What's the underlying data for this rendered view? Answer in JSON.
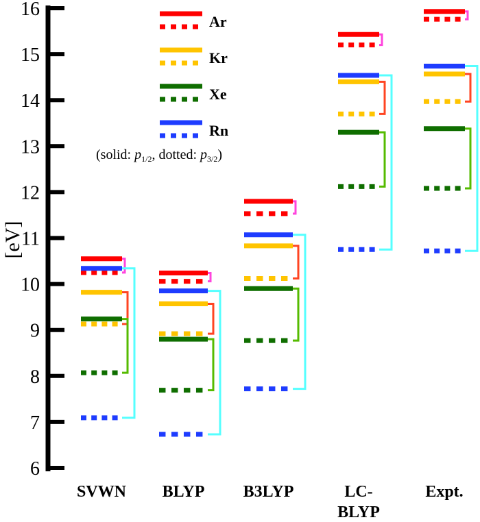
{
  "chart_data": {
    "type": "energy-level diagram",
    "ylabel": "[eV]",
    "ylim": [
      6,
      16
    ],
    "yticks": [
      6,
      7,
      8,
      9,
      10,
      11,
      12,
      13,
      14,
      15,
      16
    ],
    "categories": [
      "SVWN",
      "BLYP",
      "B3LYP",
      "LC-\nBLYP",
      "Expt."
    ],
    "legend": {
      "items": [
        "Ar",
        "Kr",
        "Xe",
        "Rn"
      ],
      "note_prefix": "(solid: ",
      "p12": "p",
      "sub12": "1/2",
      "note_mid": ", dotted: ",
      "p32": "p",
      "sub32": "3/2",
      "note_suffix": ")",
      "placement": "top-center"
    },
    "colors": {
      "Ar": "#ff0000",
      "Kr": "#ffc400",
      "Xe": "#0f6e00",
      "Rn": "#1e3cff",
      "Ar_link": "#ff44dd",
      "Kr_link": "#ff4422",
      "Xe_link": "#55bb00",
      "Rn_link": "#55ffff"
    },
    "series": [
      {
        "name": "Ar",
        "p1_2": [
          10.55,
          10.24,
          11.8,
          15.43,
          15.93
        ],
        "p3_2": [
          10.25,
          10.06,
          11.53,
          15.2,
          15.76
        ]
      },
      {
        "name": "Kr",
        "p1_2": [
          9.82,
          9.57,
          10.83,
          14.4,
          14.57
        ],
        "p3_2": [
          9.13,
          8.92,
          10.12,
          13.7,
          13.97
        ]
      },
      {
        "name": "Xe",
        "p1_2": [
          9.24,
          8.8,
          9.9,
          13.3,
          13.38
        ],
        "p3_2": [
          8.07,
          7.69,
          8.77,
          12.12,
          12.08
        ]
      },
      {
        "name": "Rn",
        "p1_2": [
          10.34,
          9.85,
          11.07,
          14.54,
          14.74
        ],
        "p3_2": [
          7.09,
          6.73,
          7.72,
          10.75,
          10.72
        ]
      }
    ]
  }
}
